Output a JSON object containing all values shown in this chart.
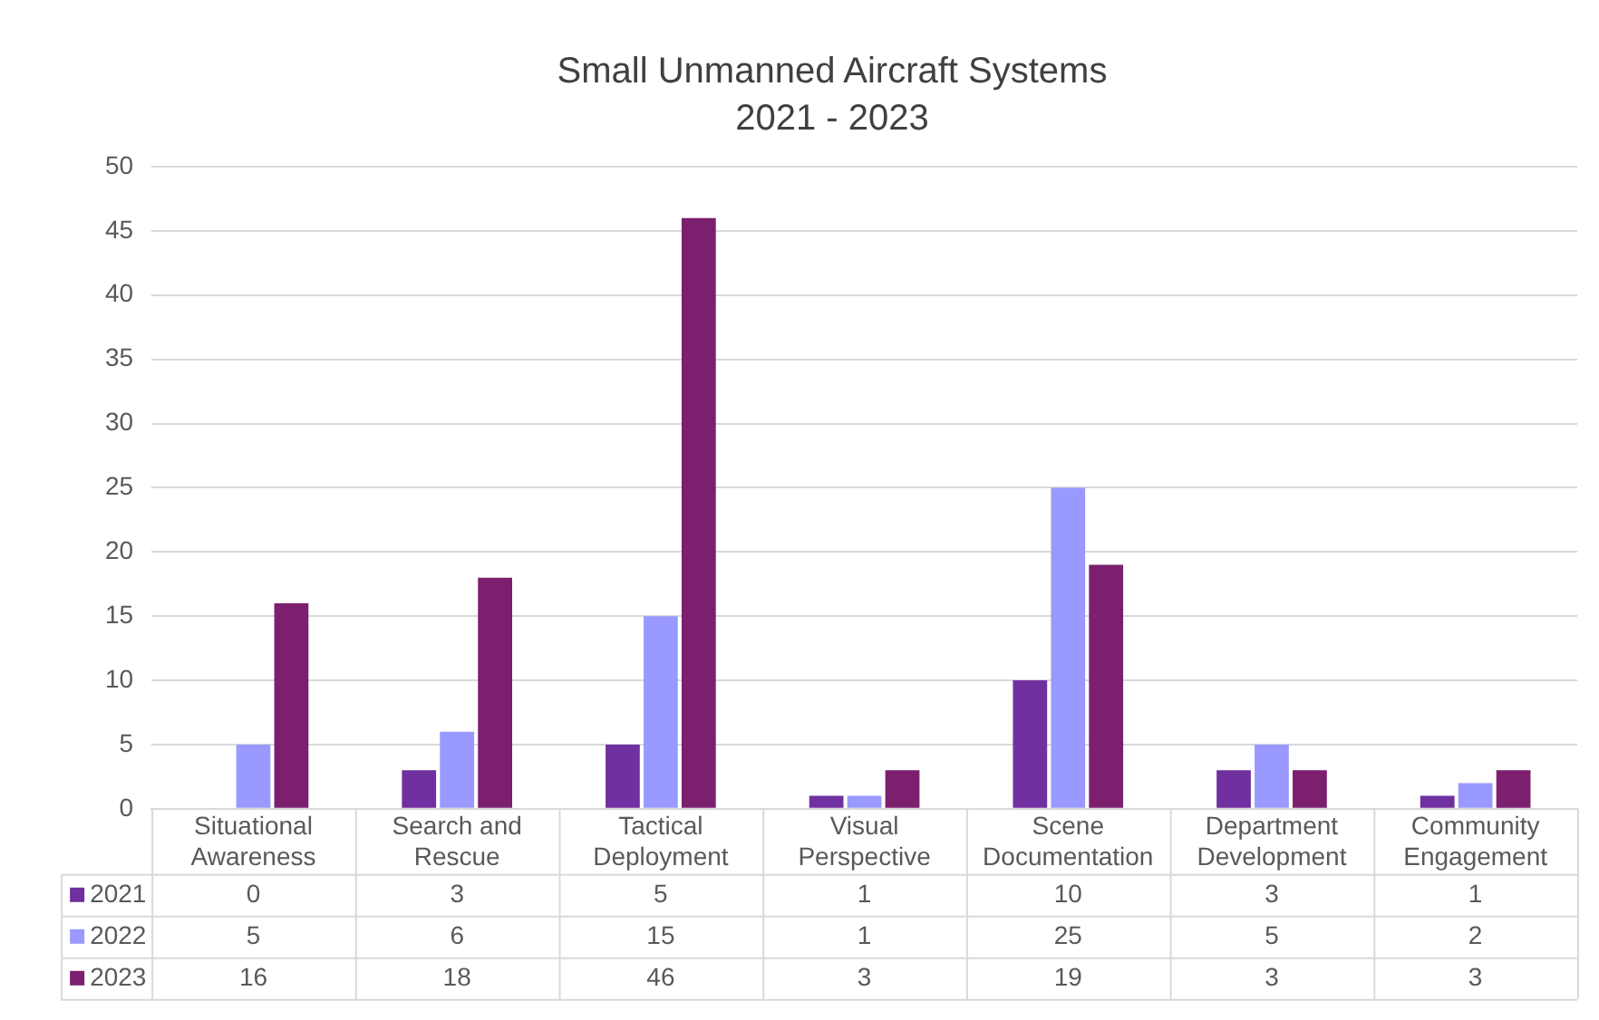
{
  "chart_data": {
    "type": "bar",
    "title": "Small Unmanned Aircraft Systems",
    "subtitle": "2021 - 2023",
    "categories": [
      "Situational Awareness",
      "Search and Rescue",
      "Tactical Deployment",
      "Visual Perspective",
      "Scene Documentation",
      "Department Development",
      "Community Engagement"
    ],
    "series": [
      {
        "name": "2021",
        "color": "#7030a0",
        "values": [
          0,
          3,
          5,
          1,
          10,
          3,
          1
        ]
      },
      {
        "name": "2022",
        "color": "#9999ff",
        "values": [
          5,
          6,
          15,
          1,
          25,
          5,
          2
        ]
      },
      {
        "name": "2023",
        "color": "#7b1f6e",
        "values": [
          16,
          18,
          46,
          3,
          19,
          3,
          3
        ]
      }
    ],
    "ylim": [
      0,
      50
    ],
    "yticks": [
      0,
      5,
      10,
      15,
      20,
      25,
      30,
      35,
      40,
      45,
      50
    ],
    "grid": "y",
    "data_labels": true,
    "legend": "bottom"
  }
}
